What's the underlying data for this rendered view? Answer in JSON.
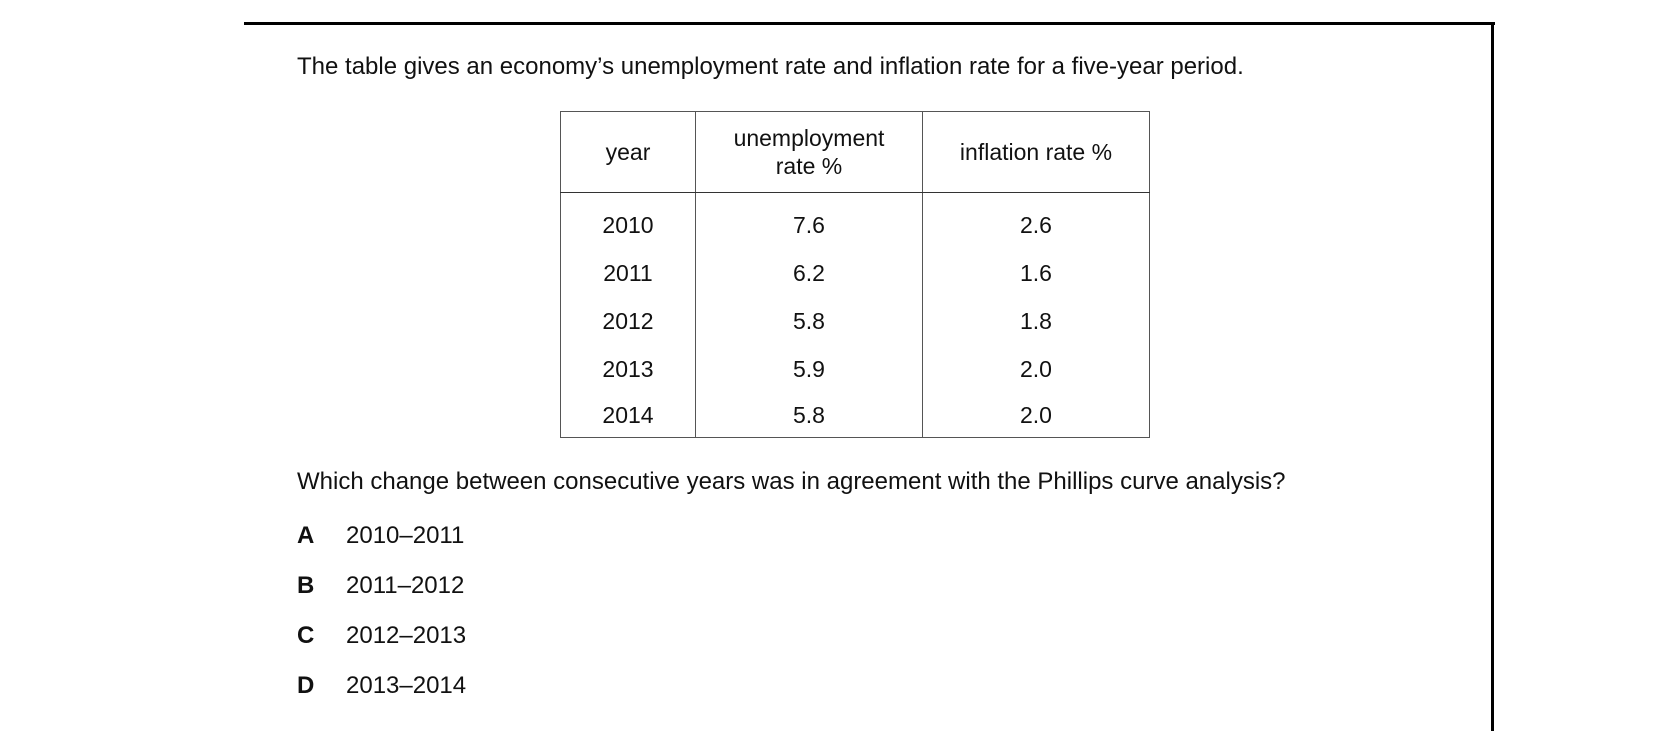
{
  "intro": "The table gives an economy’s unemployment rate and inflation rate for a five-year period.",
  "table": {
    "header": [
      "year",
      "unemployment rate %",
      "inflation rate %"
    ],
    "rows": [
      [
        "2010",
        "7.6",
        "2.6"
      ],
      [
        "2011",
        "6.2",
        "1.6"
      ],
      [
        "2012",
        "5.8",
        "1.8"
      ],
      [
        "2013",
        "5.9",
        "2.0"
      ],
      [
        "2014",
        "5.8",
        "2.0"
      ]
    ]
  },
  "question": "Which change between consecutive years was in agreement with the Phillips curve analysis?",
  "options": [
    {
      "letter": "A",
      "text": "2010–2011"
    },
    {
      "letter": "B",
      "text": "2011–2012"
    },
    {
      "letter": "C",
      "text": "2012–2013"
    },
    {
      "letter": "D",
      "text": "2013–2014"
    }
  ]
}
